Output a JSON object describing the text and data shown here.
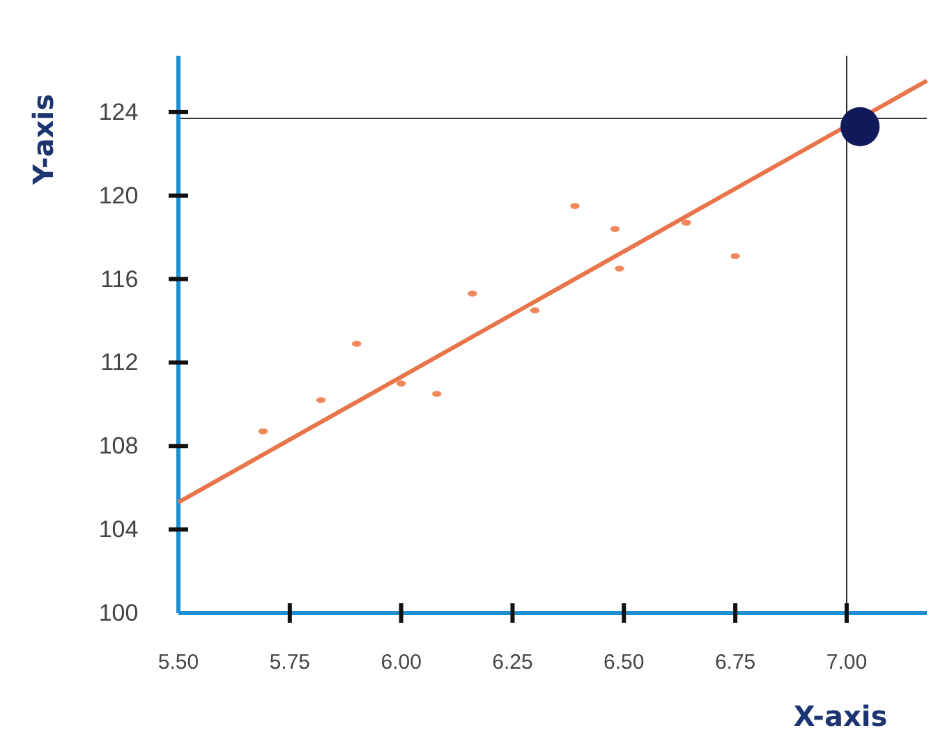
{
  "chart_data": {
    "type": "scatter",
    "xlabel": "X-axis",
    "ylabel": "Y-axis",
    "xlim": [
      5.5,
      7.18
    ],
    "ylim": [
      100,
      126.7
    ],
    "xticks": [
      {
        "value": 5.5,
        "label": "5.50"
      },
      5.75,
      {
        "value": 6,
        "label": "6.00"
      },
      6.25,
      {
        "value": 6.5,
        "label": "6.50"
      },
      6.75,
      {
        "value": 7,
        "label": "7.00"
      }
    ],
    "yticks": [
      100,
      104,
      108,
      112,
      116,
      120,
      124
    ],
    "grid": false,
    "series": [
      {
        "color": "#f0875a",
        "marker": "circle",
        "x": [
          5.69,
          5.82,
          5.9,
          6.0,
          6.08,
          6.16,
          6.3,
          6.39,
          6.48,
          6.49,
          6.64,
          6.75
        ],
        "values": [
          108.7,
          110.2,
          112.9,
          111.0,
          110.5,
          115.3,
          114.5,
          119.5,
          118.4,
          116.5,
          118.7,
          117.1
        ]
      },
      {
        "type": "line",
        "color": "#e8744a",
        "x": [
          5.5,
          7.18
        ],
        "values": [
          105.3,
          125.5
        ]
      },
      {
        "color": "#101a5a",
        "marker": "circle",
        "x": [
          7.03
        ],
        "values": [
          123.3
        ]
      }
    ],
    "ref_lines": [
      {
        "axis": "x",
        "value": 7.0,
        "color": "#333333"
      },
      {
        "axis": "y",
        "value": 123.7,
        "color": "#333333"
      }
    ]
  }
}
